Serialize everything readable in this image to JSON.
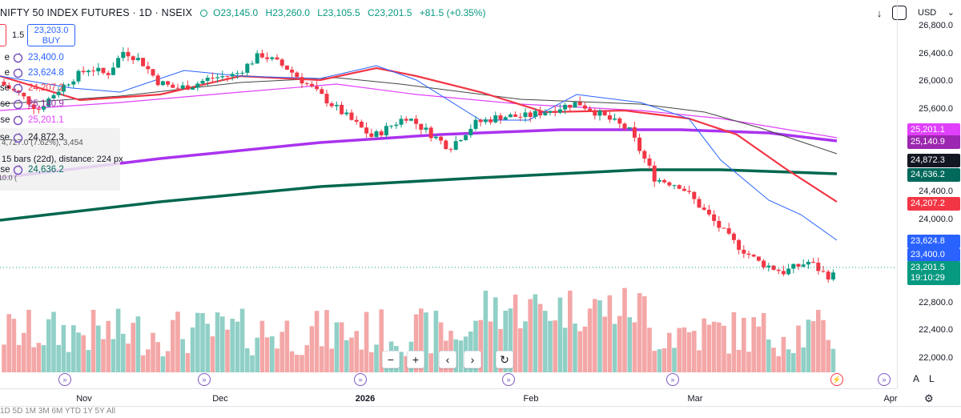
{
  "header": {
    "symbol": "NIFTY 50 INDEX FUTURES · 1D · NSEIX",
    "open": "O23,145.0",
    "high": "H23,260.0",
    "low": "L23,105.5",
    "close": "C23,201.5",
    "change": "+81.5 (+0.35%)"
  },
  "trade": {
    "buy_price": "23,203.0",
    "buy_label": "BUY",
    "spread": "1.5"
  },
  "legend": [
    {
      "name": "e",
      "value": "23,400.0",
      "color": "#2962ff"
    },
    {
      "name": "e",
      "value": "23,624.8",
      "color": "#2962ff"
    },
    {
      "name": "se",
      "value": "24,207.2",
      "color": "#f23645"
    },
    {
      "name": "ose",
      "value": "25,140.9",
      "color": "#9c27b0"
    },
    {
      "name": "ose",
      "value": "25,201.1",
      "color": "#e040fb"
    },
    {
      "name": "se",
      "value": "24,872.3",
      "color": "#131722"
    },
    {
      "name": "ose",
      "value": "24,636.2",
      "color": "#00695c"
    }
  ],
  "measure": {
    "stats": "4,727.0 (7.62%), 3,454",
    "bars": "15 bars (22d), distance: 224 px",
    "extra": "10.0 ("
  },
  "toolbar": {
    "currency": "USD",
    "currency_caret": "⌄",
    "download_icon": "arrow-down-icon",
    "fullscreen_icon": "screenshot-icon"
  },
  "price_scale": {
    "ticks": [
      "26,800.0",
      "26,400.0",
      "26,000.0",
      "25,600.0",
      "24,400.0",
      "24,000.0",
      "22,800.0",
      "22,400.0",
      "22,000.0"
    ],
    "labels": [
      {
        "text": "25,201.1",
        "color": "#e040fb"
      },
      {
        "text": "25,140.9",
        "color": "#9c27b0"
      },
      {
        "text": "24,872.3",
        "color": "#131722"
      },
      {
        "text": "24,636.2",
        "color": "#00695c"
      },
      {
        "text": "24,207.2",
        "color": "#f23645"
      },
      {
        "text": "23,624.8",
        "color": "#2962ff"
      },
      {
        "text": "23,400.0",
        "color": "#2962ff"
      },
      {
        "text": "23,201.5",
        "color": "#089981"
      },
      {
        "text": "19:10:29",
        "color": "#089981"
      }
    ],
    "y_min": 21800,
    "y_max": 26950
  },
  "zoom": {
    "minus": "−",
    "plus": "+",
    "left": "‹",
    "right": "›",
    "reset": "↻"
  },
  "time_axis": {
    "labels": [
      "Nov",
      "Dec",
      "2026",
      "Feb",
      "Mar",
      "Apr"
    ]
  },
  "axis_modes": {
    "auto": "A",
    "log": "L"
  },
  "bottom_strip": "1D  5D  1M  3M  6M  YTD  1Y  5Y  All",
  "colors": {
    "up": "#089981",
    "down": "#f23645",
    "up_vol": "#90d0c6",
    "down_vol": "#f4a7a7",
    "ma_purple": "#aa33ee",
    "ma_green": "#00674f",
    "ma_red": "#f23645",
    "ma_blue": "#2962ff",
    "ma_pink": "#e040fb",
    "ma_black": "#444444"
  }
}
